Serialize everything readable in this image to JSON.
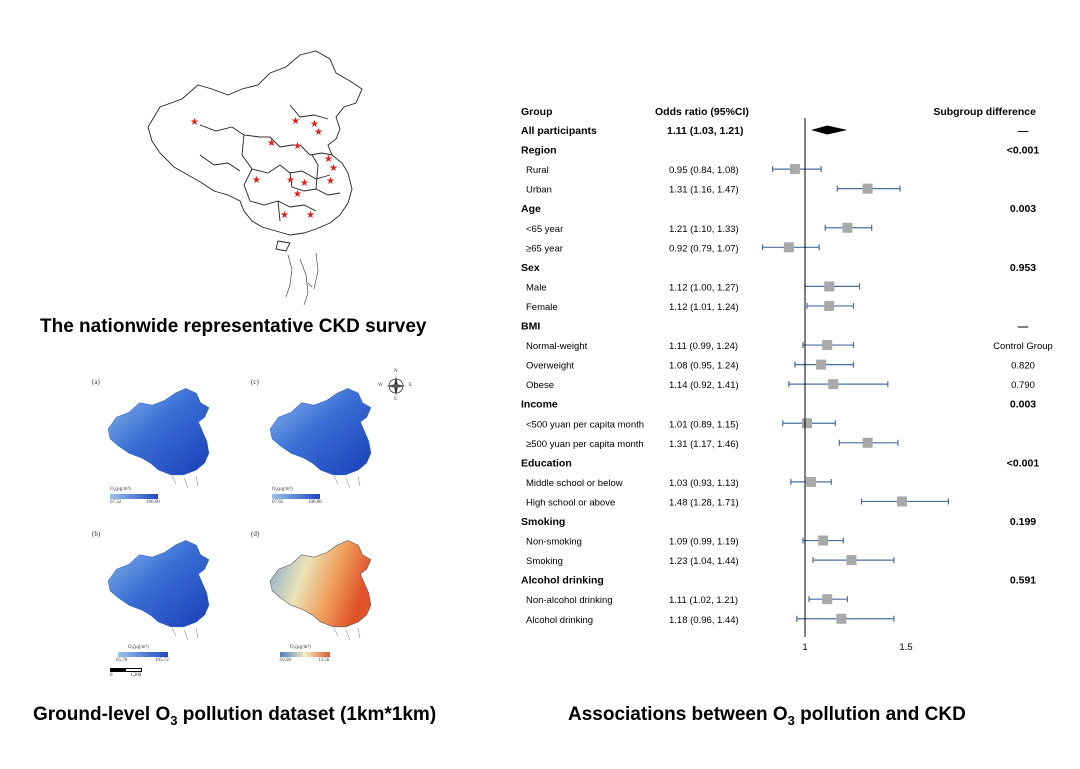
{
  "survey_map": {
    "caption": "The nationwide representative CKD survey"
  },
  "o3_maps": {
    "caption_pre": "Ground-level O",
    "caption_sub": "3",
    "caption_post": " pollution dataset (1km*1km)",
    "compass_letters": {
      "n": "N",
      "s": "S",
      "e": "E",
      "w": "W"
    },
    "scale_labels": [
      "0",
      "1,200"
    ],
    "panels": [
      {
        "label": "(a)",
        "unit": "O₃(μg/m³)",
        "min": "67.32",
        "max": "106.60",
        "colors": [
          "#9cc3ea",
          "#1f45c2"
        ]
      },
      {
        "label": "(c)",
        "unit": "O₃(μg/m³)",
        "min": "67.65",
        "max": "106.06",
        "colors": [
          "#9cc3ea",
          "#1f45c2"
        ]
      },
      {
        "label": "(b)",
        "unit": "O₃(μg/m³)",
        "min": "65.78",
        "max": "105.72",
        "colors": [
          "#9cc3ea",
          "#1f45c2"
        ]
      },
      {
        "label": "(d)",
        "unit": "O₃(μg/m³)",
        "min": "-10.58",
        "max": "13.56",
        "colors": [
          "#4f7fc0",
          "#f2ecc0",
          "#e05a2c"
        ]
      }
    ]
  },
  "chart_data": {
    "type": "forest",
    "title_pre": "Associations between O",
    "title_sub": "3",
    "title_post": " pollution and CKD",
    "headers": {
      "group": "Group",
      "or": "Odds ratio (95%CI)",
      "diff": "Subgroup difference"
    },
    "x_ticks": [
      1,
      1.5
    ],
    "x_tick_labels": [
      "1",
      "1.5"
    ],
    "x_range": [
      0.7,
      1.78
    ],
    "null_line": 1,
    "rows": [
      {
        "label": "All participants",
        "kind": "overall",
        "or": 1.11,
        "lo": 1.03,
        "hi": 1.21,
        "or_text": "1.11 (1.03, 1.21)",
        "diff": "—",
        "diff_bold": true
      },
      {
        "label": "Region",
        "kind": "header",
        "diff": "<0.001",
        "diff_bold": true
      },
      {
        "label": "Rural",
        "kind": "sub",
        "or": 0.95,
        "lo": 0.84,
        "hi": 1.08,
        "or_text": "0.95 (0.84, 1.08)"
      },
      {
        "label": "Urban",
        "kind": "sub",
        "or": 1.31,
        "lo": 1.16,
        "hi": 1.47,
        "or_text": "1.31 (1.16, 1.47)"
      },
      {
        "label": "Age",
        "kind": "header",
        "diff": "0.003",
        "diff_bold": true
      },
      {
        "label": "<65 year",
        "kind": "sub",
        "or": 1.21,
        "lo": 1.1,
        "hi": 1.33,
        "or_text": "1.21 (1.10, 1.33)"
      },
      {
        "label": "≥65 year",
        "kind": "sub",
        "or": 0.92,
        "lo": 0.79,
        "hi": 1.07,
        "or_text": "0.92 (0.79, 1.07)"
      },
      {
        "label": "Sex",
        "kind": "header",
        "diff": "0.953",
        "diff_bold": true
      },
      {
        "label": "Male",
        "kind": "sub",
        "or": 1.12,
        "lo": 1.0,
        "hi": 1.27,
        "or_text": "1.12 (1.00, 1.27)"
      },
      {
        "label": "Female",
        "kind": "sub",
        "or": 1.12,
        "lo": 1.01,
        "hi": 1.24,
        "or_text": "1.12 (1.01, 1.24)"
      },
      {
        "label": "BMI",
        "kind": "header",
        "diff": "—",
        "diff_bold": true
      },
      {
        "label": "Normal-weight",
        "kind": "sub",
        "or": 1.11,
        "lo": 0.99,
        "hi": 1.24,
        "or_text": "1.11 (0.99, 1.24)",
        "diff": "Control Group"
      },
      {
        "label": "Overweight",
        "kind": "sub",
        "or": 1.08,
        "lo": 0.95,
        "hi": 1.24,
        "or_text": "1.08 (0.95, 1.24)",
        "diff": "0.820"
      },
      {
        "label": "Obese",
        "kind": "sub",
        "or": 1.14,
        "lo": 0.92,
        "hi": 1.41,
        "or_text": "1.14 (0.92, 1.41)",
        "diff": "0.790"
      },
      {
        "label": "Income",
        "kind": "header",
        "diff": "0.003",
        "diff_bold": true
      },
      {
        "label": "<500 yuan per capita month",
        "kind": "sub",
        "or": 1.01,
        "lo": 0.89,
        "hi": 1.15,
        "or_text": "1.01 (0.89, 1.15)"
      },
      {
        "label": "≥500 yuan per capita month",
        "kind": "sub",
        "or": 1.31,
        "lo": 1.17,
        "hi": 1.46,
        "or_text": "1.31 (1.17, 1.46)"
      },
      {
        "label": "Education",
        "kind": "header",
        "diff": "<0.001",
        "diff_bold": true
      },
      {
        "label": "Middle school or below",
        "kind": "sub",
        "or": 1.03,
        "lo": 0.93,
        "hi": 1.13,
        "or_text": "1.03 (0.93, 1.13)"
      },
      {
        "label": "High school or above",
        "kind": "sub",
        "or": 1.48,
        "lo": 1.28,
        "hi": 1.71,
        "or_text": "1.48 (1.28, 1.71)"
      },
      {
        "label": "Smoking",
        "kind": "header",
        "diff": "0.199",
        "diff_bold": true
      },
      {
        "label": "Non-smoking",
        "kind": "sub",
        "or": 1.09,
        "lo": 0.99,
        "hi": 1.19,
        "or_text": "1.09 (0.99, 1.19)"
      },
      {
        "label": "Smoking",
        "kind": "sub",
        "or": 1.23,
        "lo": 1.04,
        "hi": 1.44,
        "or_text": "1.23 (1.04, 1.44)"
      },
      {
        "label": "Alcohol drinking",
        "kind": "header",
        "diff": "0.591",
        "diff_bold": true
      },
      {
        "label": "Non-alcohol drinking",
        "kind": "sub",
        "or": 1.11,
        "lo": 1.02,
        "hi": 1.21,
        "or_text": "1.11 (1.02, 1.21)"
      },
      {
        "label": "Alcohol drinking",
        "kind": "sub",
        "or": 1.18,
        "lo": 0.96,
        "hi": 1.44,
        "or_text": "1.18 (0.96, 1.44)"
      }
    ]
  }
}
